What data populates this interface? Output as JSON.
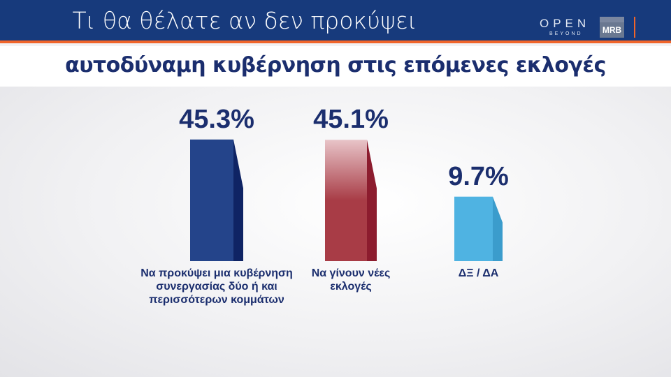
{
  "header": {
    "title": "Τι θα θέλατε αν δεν προκύψει",
    "logo_open": "OPEN",
    "logo_beyond": "BEYOND",
    "logo_mrb": "MRB"
  },
  "chart_data": {
    "type": "bar",
    "title": "Τι θα θέλατε αν δεν προκύψει αυτοδύναμη κυβέρνηση στις επόμενες εκλογές",
    "subtitle": "αυτοδύναμη κυβέρνηση στις επόμενες  εκλογές",
    "categories": [
      "Να προκύψει μια κυβέρνηση συνεργασίας δύο ή και περισσότερων κομμάτων",
      "Να γίνουν νέες εκλογές",
      "ΔΞ / ΔΑ"
    ],
    "values": [
      45.3,
      45.1,
      9.7
    ],
    "value_labels": [
      "45.3%",
      "45.1%",
      "9.7%"
    ],
    "colors": [
      "#24448a",
      "#a83c46",
      "#4fb3e2"
    ],
    "side_colors": [
      "#0f2464",
      "#8c1c2e",
      "#3b9ccc"
    ],
    "ylim": [
      0,
      50
    ],
    "grid": false,
    "legend": "none"
  }
}
